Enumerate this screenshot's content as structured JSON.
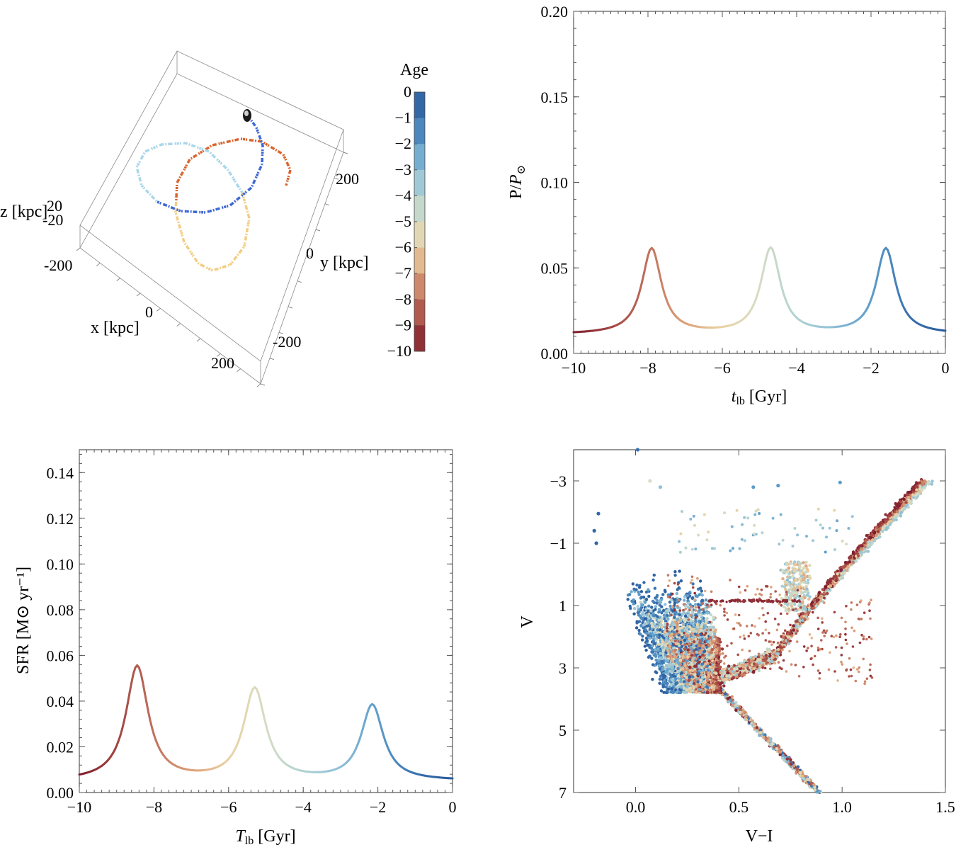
{
  "colormap": [
    "#7e1e2e",
    "#a2433f",
    "#c0705e",
    "#dc9f79",
    "#ead2a4",
    "#d7dcc4",
    "#b1d3d1",
    "#8fbfd8",
    "#5d9cc9",
    "#3a72b0",
    "#2b5c9c"
  ],
  "chart_data": [
    {
      "id": "orbit3d",
      "type": "scatter",
      "axes": {
        "x": {
          "label": "x [kpc]",
          "ticks": [
            "-200",
            "0",
            "200"
          ]
        },
        "y": {
          "label": "y [kpc]",
          "ticks": [
            "-200",
            "0",
            "200"
          ]
        },
        "z": {
          "label": "z [kpc]",
          "ticks": [
            "-20",
            "20"
          ]
        }
      },
      "legend": {
        "title": "Age",
        "ticks": [
          "0",
          "−1",
          "−2",
          "−3",
          "−4",
          "−5",
          "−6",
          "−7",
          "−8",
          "−9",
          "−10"
        ],
        "range": [
          -10,
          0
        ]
      },
      "series": [
        {
          "age_range": [
            -10,
            -7.5
          ],
          "color": "#d9622a"
        },
        {
          "age_range": [
            -7.5,
            -5
          ],
          "color": "#f3cc7e"
        },
        {
          "age_range": [
            -5,
            -2.5
          ],
          "color": "#a9d6e8"
        },
        {
          "age_range": [
            -2.5,
            0
          ],
          "color": "#3b66d4"
        }
      ]
    },
    {
      "id": "pressure",
      "type": "line",
      "xlabel": "t_lb [Gyr]",
      "xlabel_main": "t",
      "xlabel_sub": "lb",
      "xlabel_unit": " [Gyr]",
      "ylabel": "P/P⊙",
      "ylabel_main": "P/",
      "ylabel_italic": "P",
      "ylabel_sub": "⊙",
      "xlim": [
        -10,
        0
      ],
      "ylim": [
        0,
        0.2
      ],
      "xticks": [
        -10,
        -8,
        -6,
        -4,
        -2,
        0
      ],
      "yticks": [
        0,
        0.05,
        0.1,
        0.15,
        0.2
      ],
      "xtick_labels": [
        "−10",
        "−8",
        "−6",
        "−4",
        "−2",
        "0"
      ],
      "ytick_labels": [
        "0.00",
        "0.05",
        "0.10",
        "0.15",
        "0.20"
      ],
      "grid": false,
      "peaks": [
        {
          "x": -7.9,
          "y": 0.061
        },
        {
          "x": -4.7,
          "y": 0.061
        },
        {
          "x": -1.6,
          "y": 0.061
        }
      ],
      "baseline": 0.011,
      "peak_width": 0.32
    },
    {
      "id": "sfr",
      "type": "line",
      "xlabel": "T_lb [Gyr]",
      "xlabel_main": "T",
      "xlabel_sub": "lb",
      "xlabel_unit": " [Gyr]",
      "ylabel": "SFR [M⊙ yr⁻¹]",
      "xlim": [
        -10,
        0
      ],
      "ylim": [
        0,
        0.15
      ],
      "xticks": [
        -10,
        -8,
        -6,
        -4,
        -2,
        0
      ],
      "yticks": [
        0,
        0.02,
        0.04,
        0.06,
        0.08,
        0.1,
        0.12,
        0.14
      ],
      "xtick_labels": [
        "−10",
        "−8",
        "−6",
        "−4",
        "−2",
        "0"
      ],
      "ytick_labels": [
        "0.00",
        "0.02",
        "0.04",
        "0.06",
        "0.08",
        "0.10",
        "0.12",
        "0.14"
      ],
      "grid": false,
      "peaks": [
        {
          "x": -8.45,
          "y": 0.055
        },
        {
          "x": -5.3,
          "y": 0.045
        },
        {
          "x": -2.15,
          "y": 0.038
        }
      ],
      "baseline": 0.005,
      "peak_width": 0.36
    },
    {
      "id": "cmd",
      "type": "scatter",
      "xlabel": "V−I",
      "ylabel": "V",
      "xlim": [
        -0.3,
        1.5
      ],
      "ylim": [
        7,
        -4
      ],
      "xticks": [
        0,
        0.5,
        1,
        1.5
      ],
      "yticks": [
        -3,
        -1,
        1,
        3,
        5,
        7
      ],
      "xtick_labels": [
        "0.0",
        "0.5",
        "1.0",
        "1.5"
      ],
      "ytick_labels": [
        "−3",
        "−1",
        "1",
        "3",
        "5",
        "7"
      ],
      "grid": false,
      "highlight_points": [
        {
          "x": 0.01,
          "y": -4.0,
          "age": -1
        },
        {
          "x": 0.07,
          "y": -3.0,
          "age": -5
        },
        {
          "x": 0.12,
          "y": -2.8,
          "age": -3
        },
        {
          "x": 0.57,
          "y": -2.8,
          "age": -2
        },
        {
          "x": 0.69,
          "y": -2.85,
          "age": -2
        },
        {
          "x": 0.99,
          "y": -2.95,
          "age": -2
        },
        {
          "x": -0.18,
          "y": -1.95,
          "age": -0.5
        },
        {
          "x": -0.2,
          "y": -1.4,
          "age": -0.5
        },
        {
          "x": -0.19,
          "y": -1.0,
          "age": -0.3
        }
      ]
    }
  ]
}
